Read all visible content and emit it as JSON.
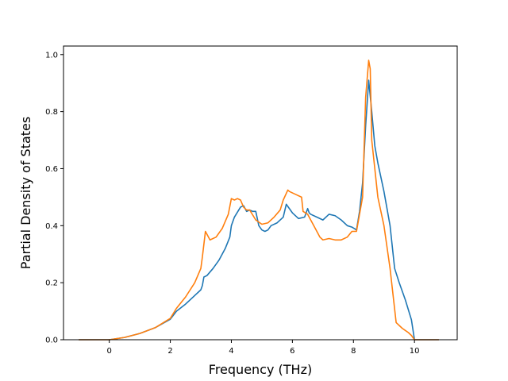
{
  "chart_data": {
    "type": "line",
    "xlabel": "Frequency (THz)",
    "ylabel": "Partial Density of States",
    "xlim": [
      -1.5,
      11.4
    ],
    "ylim": [
      0.0,
      1.03
    ],
    "xticks": [
      0,
      2,
      4,
      6,
      8,
      10
    ],
    "yticks": [
      0.0,
      0.2,
      0.4,
      0.6,
      0.8,
      1.0
    ],
    "xtick_labels": [
      "0",
      "2",
      "4",
      "6",
      "8",
      "10"
    ],
    "ytick_labels": [
      "0.0",
      "0.2",
      "0.4",
      "0.6",
      "0.8",
      "1.0"
    ],
    "grid": false,
    "series": [
      {
        "color": "#1f77b4",
        "x": [
          -1.0,
          0.0,
          0.5,
          1.0,
          1.5,
          2.0,
          2.2,
          2.5,
          2.8,
          3.0,
          3.05,
          3.1,
          3.2,
          3.4,
          3.6,
          3.8,
          3.95,
          4.0,
          4.1,
          4.3,
          4.4,
          4.5,
          4.6,
          4.7,
          4.8,
          4.9,
          5.0,
          5.1,
          5.2,
          5.3,
          5.5,
          5.7,
          5.8,
          5.9,
          6.0,
          6.2,
          6.4,
          6.5,
          6.55,
          6.6,
          6.8,
          7.0,
          7.2,
          7.4,
          7.6,
          7.8,
          7.95,
          8.1,
          8.2,
          8.3,
          8.4,
          8.5,
          8.6,
          8.7,
          8.8,
          9.0,
          9.2,
          9.35,
          9.5,
          9.7,
          9.9,
          10.0,
          10.8
        ],
        "y": [
          0.0,
          0.0,
          0.008,
          0.022,
          0.042,
          0.072,
          0.1,
          0.125,
          0.155,
          0.175,
          0.19,
          0.22,
          0.225,
          0.25,
          0.28,
          0.32,
          0.36,
          0.4,
          0.43,
          0.465,
          0.47,
          0.45,
          0.455,
          0.45,
          0.45,
          0.4,
          0.385,
          0.38,
          0.385,
          0.4,
          0.41,
          0.43,
          0.475,
          0.46,
          0.445,
          0.425,
          0.43,
          0.46,
          0.445,
          0.44,
          0.43,
          0.42,
          0.44,
          0.435,
          0.42,
          0.4,
          0.395,
          0.385,
          0.45,
          0.55,
          0.75,
          0.91,
          0.8,
          0.68,
          0.62,
          0.52,
          0.4,
          0.25,
          0.2,
          0.14,
          0.07,
          0.0,
          0.0
        ]
      },
      {
        "color": "#ff7f0e",
        "x": [
          -1.0,
          0.0,
          0.5,
          1.0,
          1.5,
          2.0,
          2.2,
          2.5,
          2.8,
          3.0,
          3.05,
          3.15,
          3.3,
          3.5,
          3.7,
          3.9,
          4.0,
          4.1,
          4.2,
          4.3,
          4.4,
          4.5,
          4.6,
          4.8,
          5.0,
          5.2,
          5.4,
          5.6,
          5.7,
          5.85,
          5.9,
          6.1,
          6.3,
          6.35,
          6.5,
          6.7,
          6.9,
          7.0,
          7.2,
          7.4,
          7.6,
          7.8,
          7.95,
          8.1,
          8.3,
          8.4,
          8.5,
          8.55,
          8.6,
          8.7,
          8.8,
          9.0,
          9.2,
          9.4,
          9.6,
          9.8,
          9.9,
          10.0,
          10.8
        ],
        "y": [
          0.0,
          0.0,
          0.008,
          0.022,
          0.042,
          0.075,
          0.11,
          0.15,
          0.2,
          0.25,
          0.29,
          0.38,
          0.35,
          0.36,
          0.39,
          0.44,
          0.495,
          0.49,
          0.495,
          0.49,
          0.465,
          0.455,
          0.455,
          0.42,
          0.405,
          0.41,
          0.43,
          0.455,
          0.49,
          0.525,
          0.52,
          0.51,
          0.5,
          0.45,
          0.44,
          0.4,
          0.36,
          0.35,
          0.355,
          0.35,
          0.35,
          0.36,
          0.38,
          0.38,
          0.5,
          0.85,
          0.98,
          0.95,
          0.7,
          0.6,
          0.5,
          0.4,
          0.25,
          0.06,
          0.04,
          0.025,
          0.015,
          0.0,
          0.0
        ]
      }
    ]
  }
}
